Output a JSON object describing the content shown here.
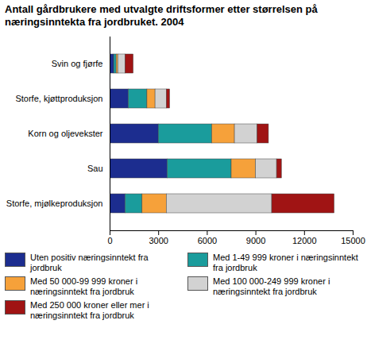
{
  "chart_data": {
    "type": "bar",
    "orientation": "horizontal",
    "stacked": true,
    "title": "Antall gårdbrukere med utvalgte driftsformer etter størrelsen på næringsinntekta fra jordbruket. 2004",
    "categories": [
      "Svin og fjørfe",
      "Storfe, kjøttproduksjon",
      "Korn og oljevekster",
      "Sau",
      "Storfe, mjølkeproduksjon"
    ],
    "series": [
      {
        "name": "Uten positiv næringsinntekt fra jordbruk",
        "color": "#1c2d8f",
        "values": [
          250,
          1150,
          3000,
          3550,
          950
        ]
      },
      {
        "name": "Med 1-49 999 kroner i næringsinntekt fra jordbruk",
        "color": "#1a9c9c",
        "values": [
          150,
          1150,
          3300,
          3950,
          1050
        ]
      },
      {
        "name": "Med 50 000-99 999 kroner i næringsinntekt fra jordbruk",
        "color": "#f6a13a",
        "values": [
          100,
          500,
          1400,
          1500,
          1500
        ]
      },
      {
        "name": "Med 100 000-249 999 kroner i næringsinntekt fra jordbruk",
        "color": "#d2d2d2",
        "values": [
          450,
          700,
          1400,
          1300,
          6500
        ]
      },
      {
        "name": "Med 250 000 kroner eller mer i næringsinntekt fra jordbruk",
        "color": "#a01414",
        "values": [
          500,
          200,
          700,
          300,
          3850
        ]
      }
    ],
    "xlim": [
      0,
      15000
    ],
    "xticks": [
      0,
      3000,
      6000,
      9000,
      12000,
      15000
    ],
    "grid": false,
    "legend": "bottom"
  }
}
